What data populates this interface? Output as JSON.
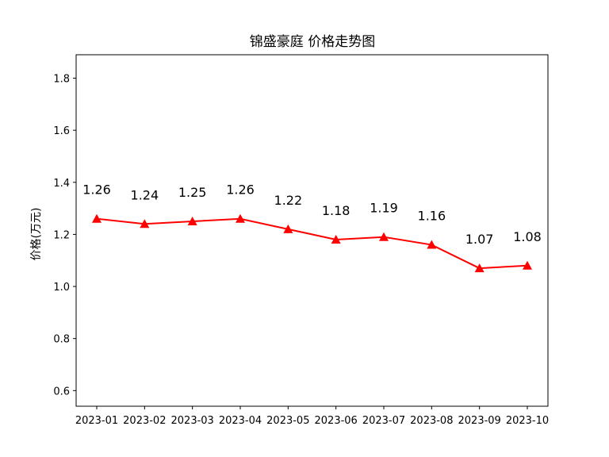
{
  "chart_data": {
    "type": "line",
    "title": "锦盛豪庭 价格走势图",
    "xlabel": "",
    "ylabel": "价格(万元)",
    "categories": [
      "2023-01",
      "2023-02",
      "2023-03",
      "2023-04",
      "2023-05",
      "2023-06",
      "2023-07",
      "2023-08",
      "2023-09",
      "2023-10"
    ],
    "series": [
      {
        "values": [
          1.26,
          1.24,
          1.25,
          1.26,
          1.22,
          1.18,
          1.19,
          1.16,
          1.07,
          1.08
        ],
        "color": "#ff0000",
        "marker": "triangle"
      }
    ],
    "data_labels": [
      "1.26",
      "1.24",
      "1.25",
      "1.26",
      "1.22",
      "1.18",
      "1.19",
      "1.16",
      "1.07",
      "1.08"
    ],
    "ylim": [
      0.54,
      1.89
    ],
    "yticks": [
      0.6,
      0.8,
      1.0,
      1.2,
      1.4,
      1.6,
      1.8
    ],
    "ytick_labels": [
      "0.6",
      "0.8",
      "1.0",
      "1.2",
      "1.4",
      "1.6",
      "1.8"
    ],
    "grid": false,
    "legend": "none"
  }
}
